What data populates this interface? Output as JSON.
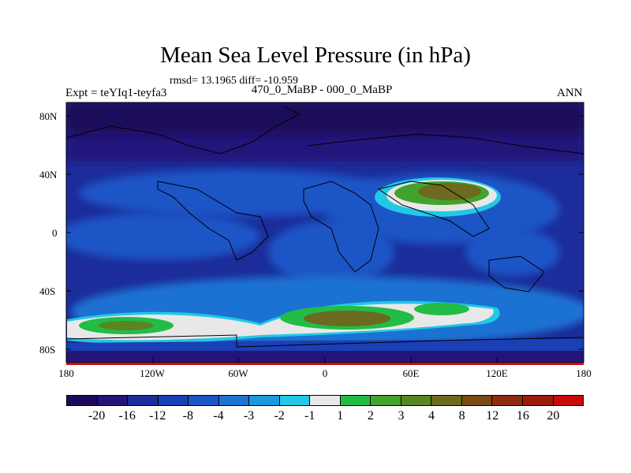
{
  "title": "Mean Sea Level Pressure (in hPa)",
  "stats_text": "rmsd= 13.1965 diff= -10.959",
  "experiment_label": "Expt = teYIq1-teyfa3",
  "period_label": "470_0_MaBP - 000_0_MaBP",
  "season_label": "ANN",
  "lat_labels": [
    "80N",
    "40N",
    "0",
    "40S",
    "80S"
  ],
  "lon_labels": [
    "180",
    "120W",
    "60W",
    "0",
    "60E",
    "120E",
    "180"
  ],
  "colorbar": {
    "colors": [
      "#1e0a5a",
      "#22157a",
      "#1c2c9a",
      "#1b3fb4",
      "#1b55c6",
      "#1e72d2",
      "#1c98dc",
      "#22c8e6",
      "#e8e8e8",
      "#22bc46",
      "#43a22c",
      "#5a8622",
      "#6b6a1e",
      "#7a4a16",
      "#8c2c10",
      "#9a1a0c",
      "#c80a0a"
    ],
    "labels": [
      "-20",
      "-16",
      "-12",
      "-8",
      "-4",
      "-3",
      "-2",
      "-1",
      "1",
      "2",
      "3",
      "4",
      "8",
      "12",
      "16",
      "20"
    ]
  }
}
